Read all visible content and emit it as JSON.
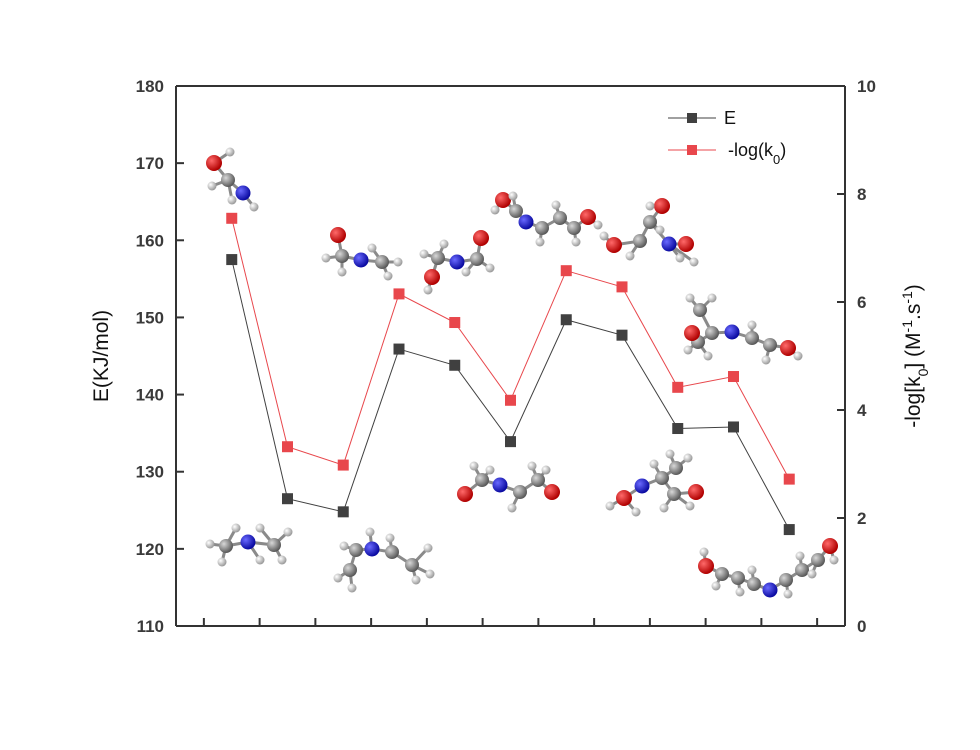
{
  "chart_data": {
    "type": "line",
    "x": [
      1,
      2,
      3,
      4,
      5,
      6,
      7,
      8,
      9,
      10,
      11
    ],
    "xlim": [
      0,
      12
    ],
    "xticks": [
      0.5,
      1.5,
      2.5,
      3.5,
      4.5,
      5.5,
      6.5,
      7.5,
      8.5,
      9.5,
      10.5,
      11.5
    ],
    "series": [
      {
        "name": "E",
        "axis": "left",
        "color": "#404040",
        "values": [
          157.5,
          126.5,
          124.8,
          145.9,
          143.8,
          133.9,
          149.7,
          147.7,
          135.6,
          135.8,
          122.5
        ]
      },
      {
        "name": "-log(k",
        "name_sub": "0",
        "name_suffix": ")",
        "axis": "right",
        "color": "#e8474c",
        "values": [
          7.55,
          3.32,
          2.98,
          6.15,
          5.62,
          4.18,
          6.58,
          6.28,
          4.42,
          4.62,
          2.72
        ]
      }
    ],
    "yleft": {
      "label": "E(KJ/mol)",
      "ylim": [
        110,
        180
      ],
      "ticks": [
        "110",
        "120",
        "130",
        "140",
        "150",
        "160",
        "170",
        "180"
      ]
    },
    "yright": {
      "label_main": "-log[k",
      "label_sub": "0",
      "label_mid": "] (M",
      "label_sup1": "-1",
      "label_mid2": ".s",
      "label_sup2": "-1",
      "label_end": ")",
      "ylim": [
        0,
        10
      ],
      "ticks": [
        "0",
        "2",
        "4",
        "6",
        "8",
        "10"
      ]
    },
    "legend": "top-right",
    "grid": false,
    "annotations": "molecular structure ball-and-stick images"
  }
}
